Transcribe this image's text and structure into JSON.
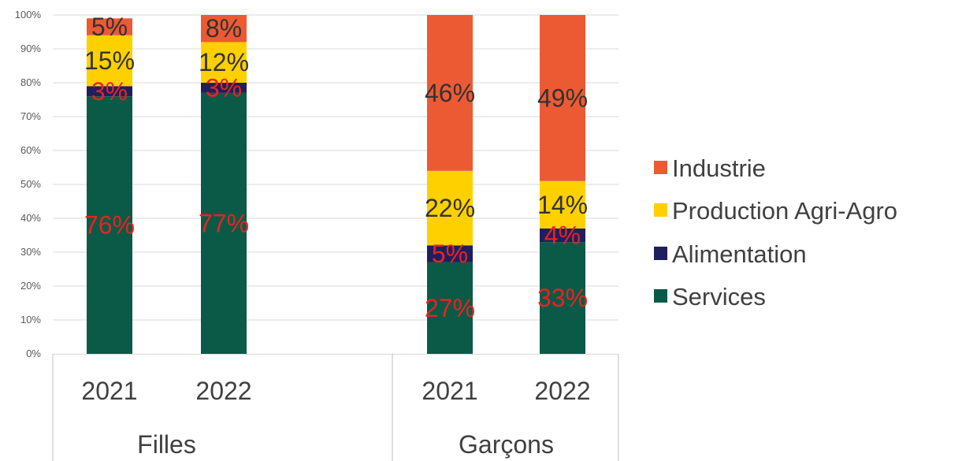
{
  "chart_data": {
    "type": "bar",
    "stacked": true,
    "percent_axis": true,
    "ylim": [
      0,
      100
    ],
    "y_ticks": [
      "0%",
      "10%",
      "20%",
      "30%",
      "40%",
      "50%",
      "60%",
      "70%",
      "80%",
      "90%",
      "100%"
    ],
    "grid": true,
    "legend_position": "right",
    "groups": [
      {
        "label": "Filles",
        "categories": [
          "2021",
          "2022"
        ]
      },
      {
        "label": "Garçons",
        "categories": [
          "2021",
          "2022"
        ]
      }
    ],
    "series": [
      {
        "name": "Services",
        "color": "#0b5a47",
        "label_color": "#e8231f",
        "values": [
          76,
          77,
          27,
          33
        ],
        "labels": [
          "76%",
          "77%",
          "27%",
          "33%"
        ]
      },
      {
        "name": "Alimentation",
        "color": "#1f1f5e",
        "label_color": "#e8231f",
        "values": [
          3,
          3,
          5,
          4
        ],
        "labels": [
          "3%",
          "3%",
          "5%",
          "4%"
        ]
      },
      {
        "name": "Production Agri-Agro",
        "color": "#ffd000",
        "label_color": "#333333",
        "values": [
          15,
          12,
          22,
          14
        ],
        "labels": [
          "15%",
          "12%",
          "22%",
          "14%"
        ]
      },
      {
        "name": "Industrie",
        "color": "#ec5a33",
        "label_color": "#333333",
        "values": [
          5,
          8,
          46,
          49
        ],
        "labels": [
          "5%",
          "8%",
          "46%",
          "49%"
        ]
      }
    ],
    "legend_order": [
      "Industrie",
      "Production Agri-Agro",
      "Alimentation",
      "Services"
    ]
  }
}
